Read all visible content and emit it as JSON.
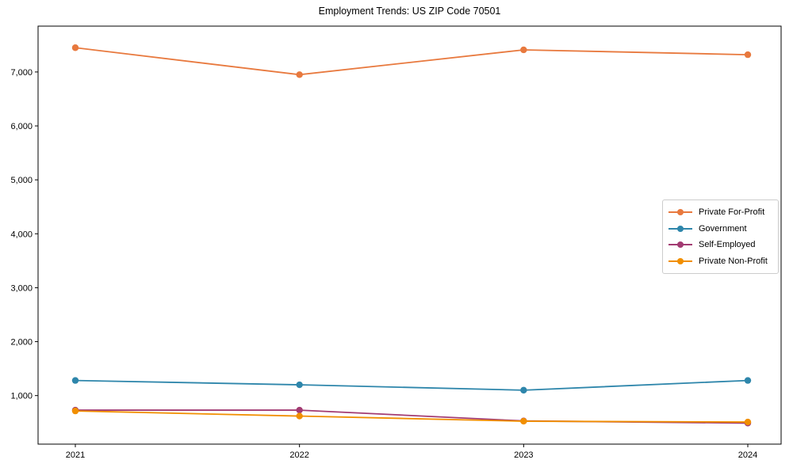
{
  "chart_data": {
    "type": "line",
    "title": "Employment Trends: US ZIP Code 70501",
    "x": [
      2021,
      2022,
      2023,
      2024
    ],
    "x_tick_labels": [
      "2021",
      "2022",
      "2023",
      "2024"
    ],
    "y_ticks": [
      1000,
      2000,
      3000,
      4000,
      5000,
      6000,
      7000
    ],
    "y_tick_labels": [
      "1,000",
      "2,000",
      "3,000",
      "4,000",
      "5,000",
      "6,000",
      "7,000"
    ],
    "ylim": [
      100,
      7850
    ],
    "xlabel": "",
    "ylabel": "",
    "grid": false,
    "legend_position": "center right",
    "axis_color": "#000000",
    "background_color": "#ffffff",
    "series": [
      {
        "name": "Private For-Profit",
        "color": "#E8793E",
        "values": [
          7450,
          6950,
          7410,
          7320
        ]
      },
      {
        "name": "Government",
        "color": "#2E86AB",
        "values": [
          1280,
          1200,
          1100,
          1280
        ]
      },
      {
        "name": "Self-Employed",
        "color": "#A23B72",
        "values": [
          730,
          730,
          530,
          490
        ]
      },
      {
        "name": "Private Non-Profit",
        "color": "#F18F01",
        "values": [
          715,
          620,
          525,
          510
        ]
      }
    ]
  }
}
